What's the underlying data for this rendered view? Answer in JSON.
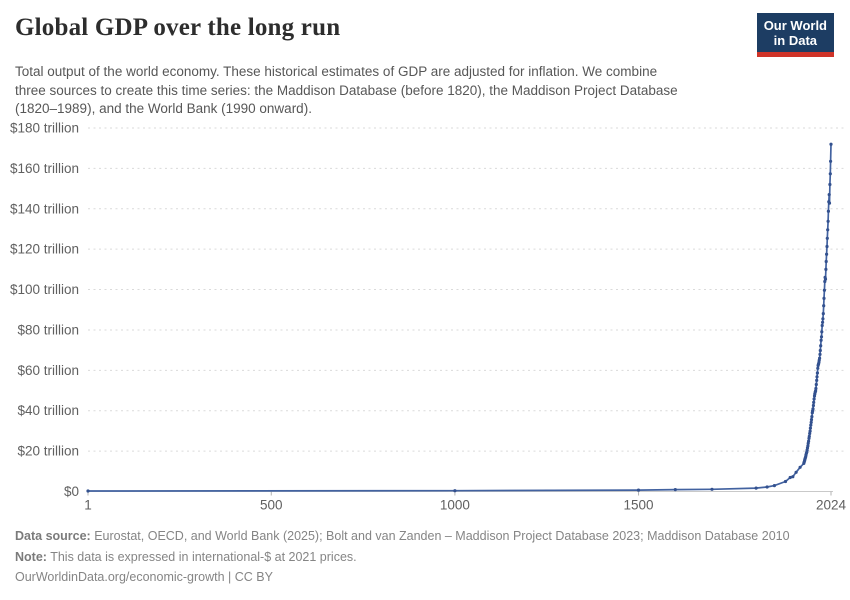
{
  "header": {
    "title": "Global GDP over the long run",
    "subtitle_lines": [
      "Total output of the world economy. These historical estimates of GDP are adjusted for inflation. We combine",
      "three sources to create this time series: the Maddison Database (before 1820), the Maddison Project Database",
      "(1820–1989), and the World Bank (1990 onward)."
    ],
    "logo": {
      "line1": "Our World",
      "line2": "in Data",
      "bg_color": "#1d3d63",
      "accent_color": "#cf3328"
    }
  },
  "chart_data": {
    "type": "line",
    "title": "Global GDP over the long run",
    "xlabel": "",
    "ylabel": "",
    "unit": "trillion international-$ at 2021 prices",
    "x_range": [
      1,
      2024
    ],
    "ylim": [
      0,
      180
    ],
    "grid": "horizontal-dashed",
    "legend_position": "none",
    "line_color": "#4262a0",
    "marker_color": "#33518f",
    "y_ticks": [
      {
        "value": 0,
        "label": "$0"
      },
      {
        "value": 20,
        "label": "$20 trillion"
      },
      {
        "value": 40,
        "label": "$40 trillion"
      },
      {
        "value": 60,
        "label": "$60 trillion"
      },
      {
        "value": 80,
        "label": "$80 trillion"
      },
      {
        "value": 100,
        "label": "$100 trillion"
      },
      {
        "value": 120,
        "label": "$120 trillion"
      },
      {
        "value": 140,
        "label": "$140 trillion"
      },
      {
        "value": 160,
        "label": "$160 trillion"
      },
      {
        "value": 180,
        "label": "$180 trillion"
      }
    ],
    "x_ticks": [
      {
        "value": 1,
        "label": "1"
      },
      {
        "value": 500,
        "label": "500"
      },
      {
        "value": 1000,
        "label": "1000"
      },
      {
        "value": 1500,
        "label": "1500"
      },
      {
        "value": 2024,
        "label": "2024"
      }
    ],
    "series": [
      {
        "name": "World GDP (trillion international-$, 2021 prices)",
        "points": [
          [
            1,
            0.27
          ],
          [
            1000,
            0.4
          ],
          [
            1500,
            0.71
          ],
          [
            1600,
            0.94
          ],
          [
            1700,
            1.1
          ],
          [
            1820,
            1.7
          ],
          [
            1850,
            2.24
          ],
          [
            1870,
            2.94
          ],
          [
            1900,
            4.96
          ],
          [
            1913,
            6.91
          ],
          [
            1920,
            7.32
          ],
          [
            1929,
            9.5
          ],
          [
            1940,
            12
          ],
          [
            1950,
            13.9
          ],
          [
            1951,
            14.6
          ],
          [
            1952,
            15.3
          ],
          [
            1953,
            16
          ],
          [
            1954,
            16.6
          ],
          [
            1955,
            17.3
          ],
          [
            1956,
            18.1
          ],
          [
            1957,
            18.9
          ],
          [
            1958,
            19.5
          ],
          [
            1959,
            20.5
          ],
          [
            1960,
            21.6
          ],
          [
            1961,
            22.6
          ],
          [
            1962,
            23.8
          ],
          [
            1963,
            24.9
          ],
          [
            1964,
            26.3
          ],
          [
            1965,
            27.3
          ],
          [
            1966,
            28.7
          ],
          [
            1967,
            29.9
          ],
          [
            1968,
            31.4
          ],
          [
            1969,
            32.9
          ],
          [
            1970,
            34.2
          ],
          [
            1971,
            35.6
          ],
          [
            1972,
            37.1
          ],
          [
            1973,
            39
          ],
          [
            1974,
            39.9
          ],
          [
            1975,
            40.9
          ],
          [
            1976,
            42.6
          ],
          [
            1977,
            44.1
          ],
          [
            1978,
            45.8
          ],
          [
            1979,
            47.3
          ],
          [
            1980,
            48.3
          ],
          [
            1981,
            49.2
          ],
          [
            1982,
            49.8
          ],
          [
            1983,
            51
          ],
          [
            1984,
            53
          ],
          [
            1985,
            55
          ],
          [
            1986,
            56.8
          ],
          [
            1987,
            58.7
          ],
          [
            1988,
            61
          ],
          [
            1989,
            62.4
          ],
          [
            1990,
            63.1
          ],
          [
            1991,
            63.9
          ],
          [
            1992,
            64.9
          ],
          [
            1993,
            66
          ],
          [
            1994,
            67.9
          ],
          [
            1995,
            69.8
          ],
          [
            1996,
            72.2
          ],
          [
            1997,
            74.9
          ],
          [
            1998,
            76.6
          ],
          [
            1999,
            79.1
          ],
          [
            2000,
            82.2
          ],
          [
            2001,
            83.8
          ],
          [
            2002,
            85.5
          ],
          [
            2003,
            88.1
          ],
          [
            2004,
            92
          ],
          [
            2005,
            95.6
          ],
          [
            2006,
            99.7
          ],
          [
            2007,
            104
          ],
          [
            2008,
            106
          ],
          [
            2009,
            105.2
          ],
          [
            2010,
            110
          ],
          [
            2011,
            113.9
          ],
          [
            2012,
            117.5
          ],
          [
            2013,
            121.3
          ],
          [
            2014,
            125.4
          ],
          [
            2015,
            129.6
          ],
          [
            2016,
            133.8
          ],
          [
            2017,
            138.8
          ],
          [
            2018,
            143.5
          ],
          [
            2019,
            147
          ],
          [
            2020,
            142.8
          ],
          [
            2021,
            152
          ],
          [
            2022,
            157.3
          ],
          [
            2023,
            163.5
          ],
          [
            2024,
            172
          ]
        ]
      }
    ]
  },
  "footer": {
    "source_label": "Data source:",
    "source_text": "Eurostat, OECD, and World Bank (2025); Bolt and van Zanden – Maddison Project Database 2023; Maddison Database 2010",
    "note_label": "Note:",
    "note_text": "This data is expressed in international-$ at 2021 prices.",
    "link_text": "OurWorldinData.org/economic-growth | CC BY"
  }
}
